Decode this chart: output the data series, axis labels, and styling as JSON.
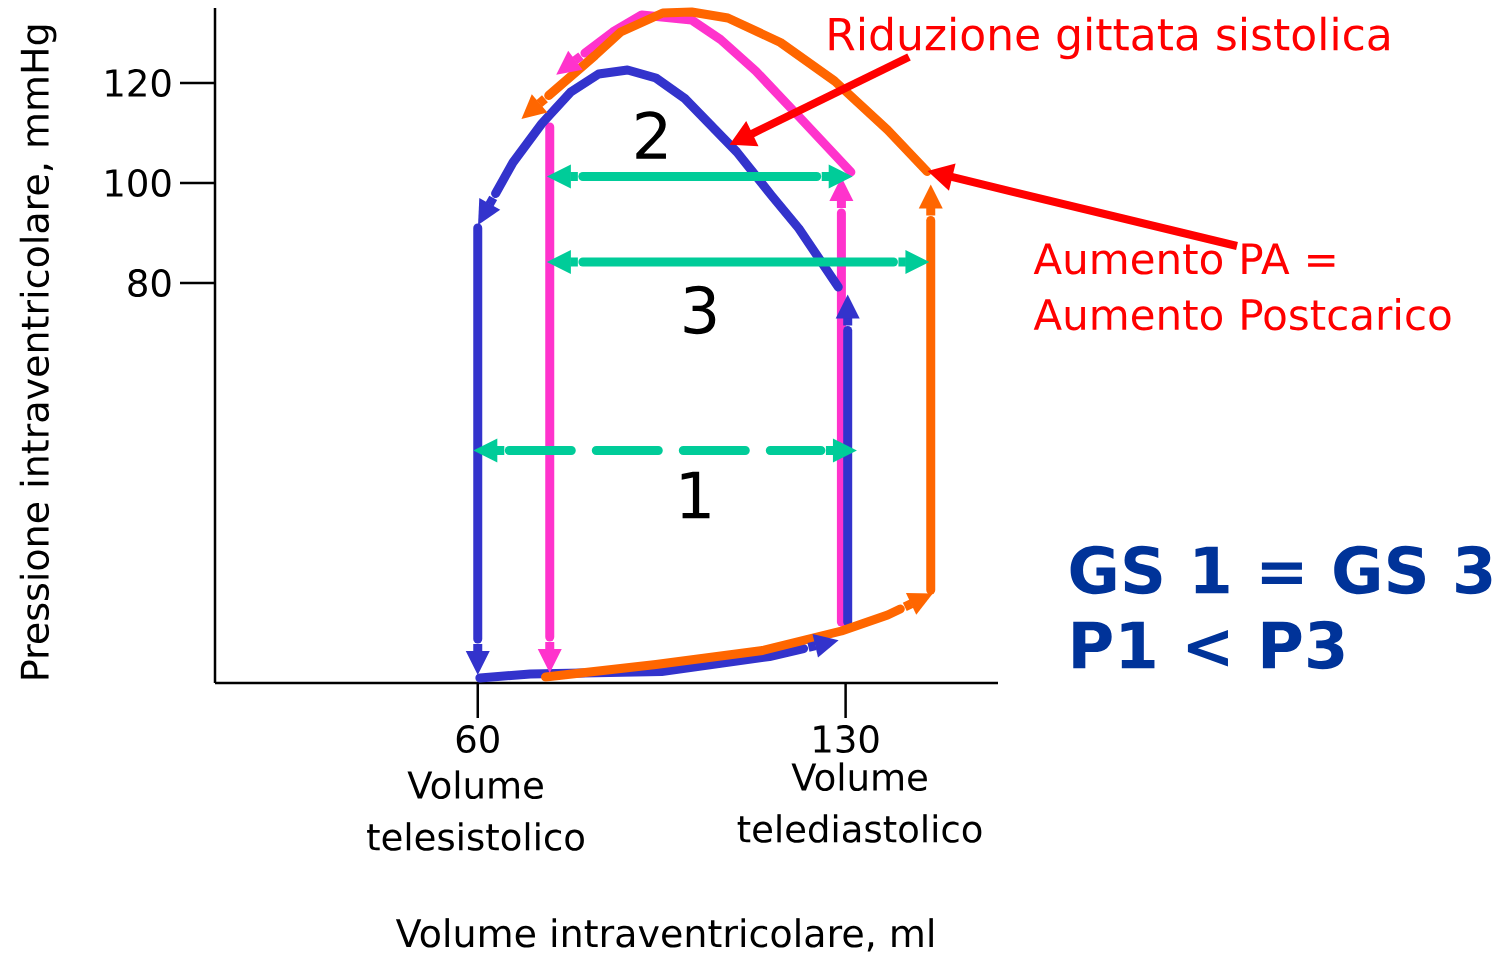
{
  "chart_data": {
    "type": "line",
    "xlabel": "Volume intraventricolare, ml",
    "ylabel": "Pressione intraventricolare, mmHg",
    "xlim": [
      10,
      159
    ],
    "xticks": [
      60,
      130
    ],
    "ylim": [
      0,
      135
    ],
    "yticks": [
      80,
      100,
      120
    ],
    "marker": "none",
    "series": [
      {
        "color": "#ff33cc",
        "x": [
          129.2,
          129.2
        ],
        "values": [
          12.2,
          94.0
        ]
      },
      {
        "color": "#ff33cc",
        "x": [
          131.0,
          121.1,
          112.9,
          106.2,
          100.7,
          91.2,
          85.7,
          80.4
        ],
        "values": [
          102.2,
          113.3,
          122.4,
          128.7,
          132.6,
          133.6,
          130.2,
          126.0
        ]
      },
      {
        "color": "#ff33cc",
        "x": [
          73.7,
          73.7
        ],
        "values": [
          111.2,
          9.2
        ]
      },
      {
        "color": "#3333cc",
        "x": [
          60.4,
          70.0,
          95.0,
          115.5,
          122.0
        ],
        "values": [
          1.0,
          1.8,
          2.3,
          5.3,
          6.9
        ]
      },
      {
        "color": "#3333cc",
        "x": [
          130.4,
          130.4
        ],
        "values": [
          12.2,
          70.5
        ]
      },
      {
        "color": "#3333cc",
        "x": [
          128.6,
          121.1,
          115.9,
          109.3,
          99.4,
          93.9,
          88.5,
          83.0,
          77.7,
          72.2,
          66.7,
          63.4
        ],
        "values": [
          79.2,
          90.9,
          97.5,
          106.2,
          116.9,
          121.0,
          122.6,
          121.8,
          118.2,
          111.9,
          104.1,
          97.9
        ]
      },
      {
        "color": "#3333cc",
        "x": [
          60.0,
          60.0
        ],
        "values": [
          91.0,
          8.8
        ]
      },
      {
        "color": "#ff6600",
        "x": [
          72.9,
          93.9,
          114.2,
          129.2,
          138.0,
          140.4
        ],
        "values": [
          1.2,
          3.7,
          6.5,
          10.4,
          13.6,
          14.8
        ]
      },
      {
        "color": "#ff6600",
        "x": [
          146.2,
          146.2
        ],
        "values": [
          18.6,
          92.5
        ]
      },
      {
        "color": "#ff6600",
        "x": [
          145.5,
          138.0,
          127.9,
          117.6,
          107.6,
          100.7,
          95.2,
          87.2,
          82.3,
          73.5
        ],
        "values": [
          102.3,
          110.6,
          120.4,
          128.1,
          133.0,
          134.2,
          134.0,
          130.2,
          125.5,
          117.5
        ]
      },
      {
        "color": "#00cc99",
        "x": [
          66.0,
          125.3
        ],
        "values": [
          46.5,
          46.5
        ],
        "line_style": "dashed"
      },
      {
        "color": "#00cc99",
        "x": [
          80.0,
          124.5
        ],
        "values": [
          101.3,
          101.3
        ]
      },
      {
        "color": "#00cc99",
        "x": [
          80.0,
          139.1
        ],
        "values": [
          84.2,
          84.2
        ]
      }
    ],
    "annotations": [
      "Riduzione gittata sistolica",
      "Aumento PA = Aumento Postcarico",
      "GS 1 = GS 3",
      "P1 < P3",
      "1",
      "2",
      "3",
      "Volume telesistolico",
      "Volume telediastolico"
    ]
  }
}
